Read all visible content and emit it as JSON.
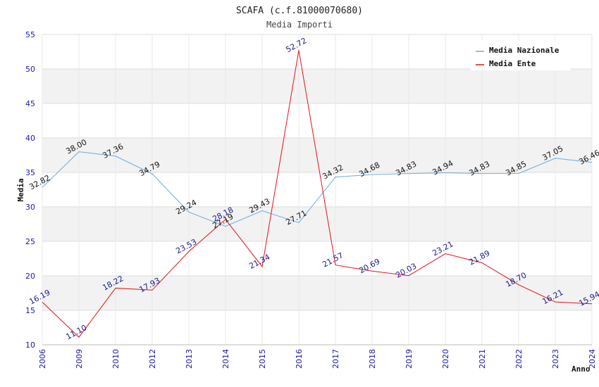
{
  "chart_data": {
    "type": "line",
    "title": "SCAFA (c.f.81000070680)",
    "subtitle": "Media Importi",
    "ylabel": "Media",
    "xlabel": "Anno",
    "ylim": [
      10,
      55
    ],
    "yticks": [
      10,
      15,
      20,
      25,
      30,
      35,
      40,
      45,
      50,
      55
    ],
    "categories": [
      "2006",
      "2009",
      "2010",
      "2012",
      "2013",
      "2014",
      "2015",
      "2016",
      "2017",
      "2018",
      "2019",
      "2020",
      "2021",
      "2022",
      "2023",
      "2024"
    ],
    "series": [
      {
        "name": "Media Nazionale",
        "color": "#6aabdf",
        "label_color": "#111111",
        "values": [
          32.82,
          38.0,
          37.36,
          34.79,
          29.24,
          27.19,
          29.43,
          27.71,
          34.32,
          34.68,
          34.83,
          34.94,
          34.83,
          34.85,
          37.05,
          36.46
        ],
        "labels": [
          "32.82",
          "38.00",
          "37.36",
          "34.79",
          "29.24",
          "27.19",
          "29.43",
          "27.71",
          "34.32",
          "34.68",
          "34.83",
          "34.94",
          "34.83",
          "34.85",
          "37.05",
          "36.46"
        ]
      },
      {
        "name": "Media Ente",
        "color": "#e0141a",
        "label_color": "#1a1a8c",
        "values": [
          16.19,
          11.1,
          18.22,
          17.93,
          23.53,
          28.18,
          21.34,
          52.72,
          21.57,
          20.69,
          20.03,
          23.21,
          21.89,
          18.7,
          16.21,
          15.94
        ],
        "labels": [
          "16.19",
          "11.10",
          "18.22",
          "17.93",
          "23.53",
          "28.18",
          "21.34",
          "52.72",
          "21.57",
          "20.69",
          "20.03",
          "23.21",
          "21.89",
          "18.70",
          "16.21",
          "15.94"
        ]
      }
    ]
  }
}
